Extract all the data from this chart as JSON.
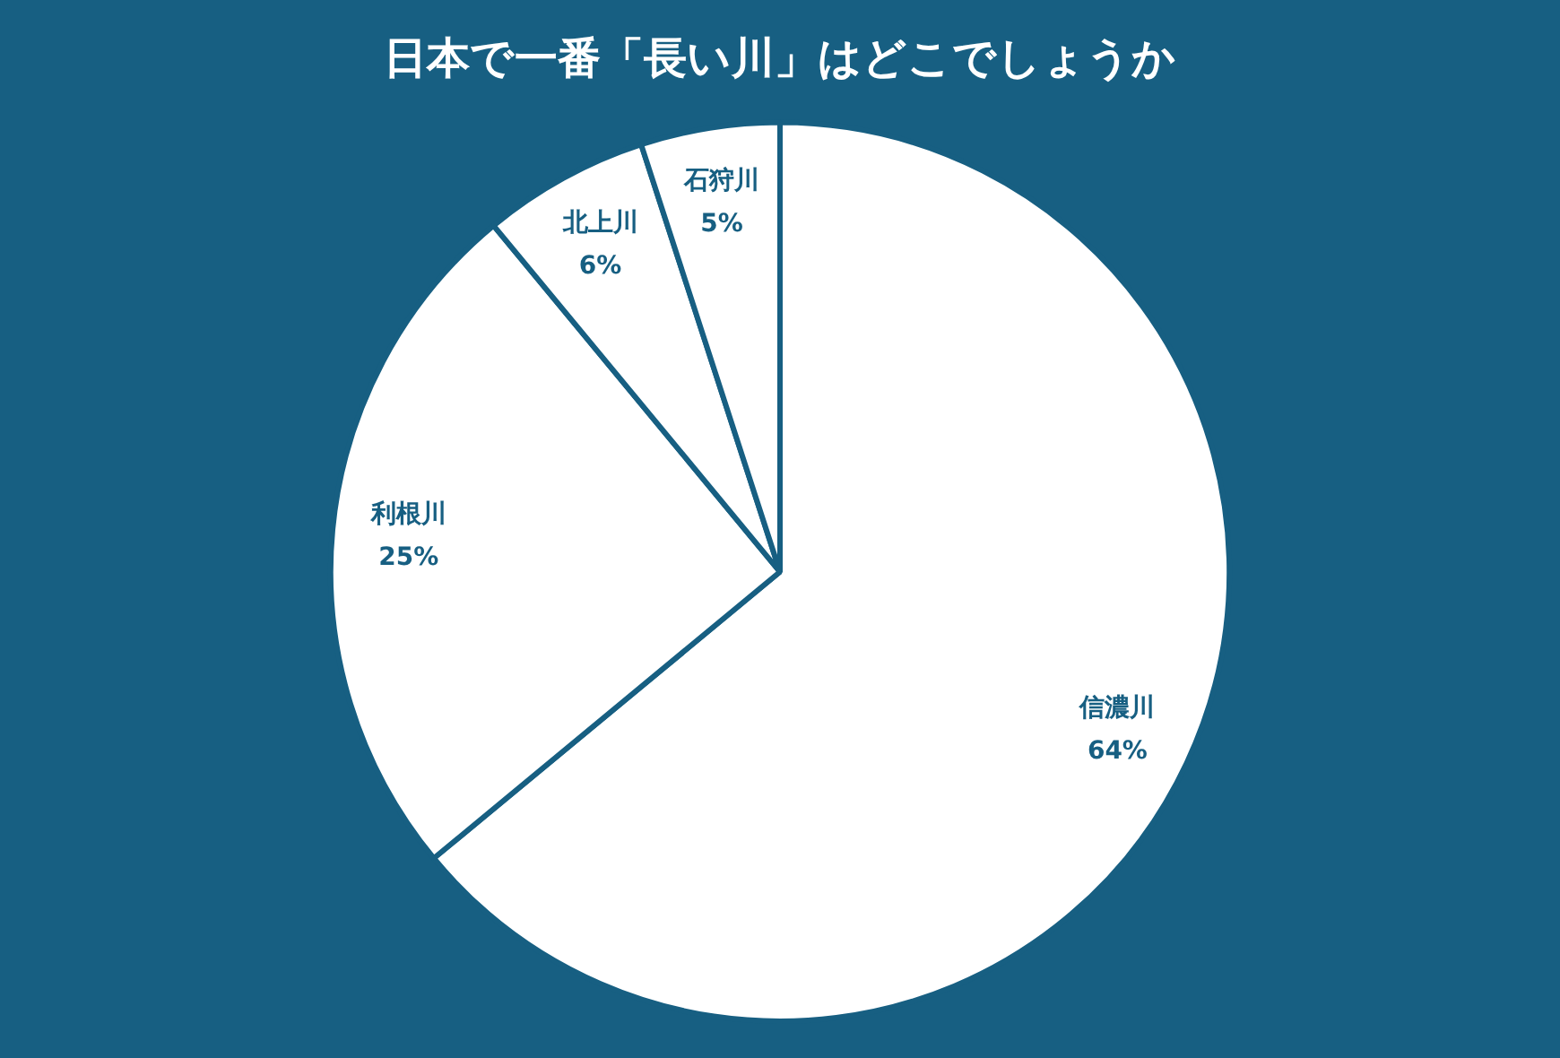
{
  "chart_data": {
    "type": "pie",
    "title": "日本で一番「長い川」はどこでしょうか",
    "categories": [
      "信濃川",
      "利根川",
      "北上川",
      "石狩川"
    ],
    "values": [
      64,
      25,
      6,
      5
    ],
    "value_labels": [
      "64%",
      "25%",
      "6%",
      "5%"
    ],
    "colors": [
      "#ffffff",
      "#ffffff",
      "#ffffff",
      "#ffffff"
    ],
    "legend": false
  }
}
